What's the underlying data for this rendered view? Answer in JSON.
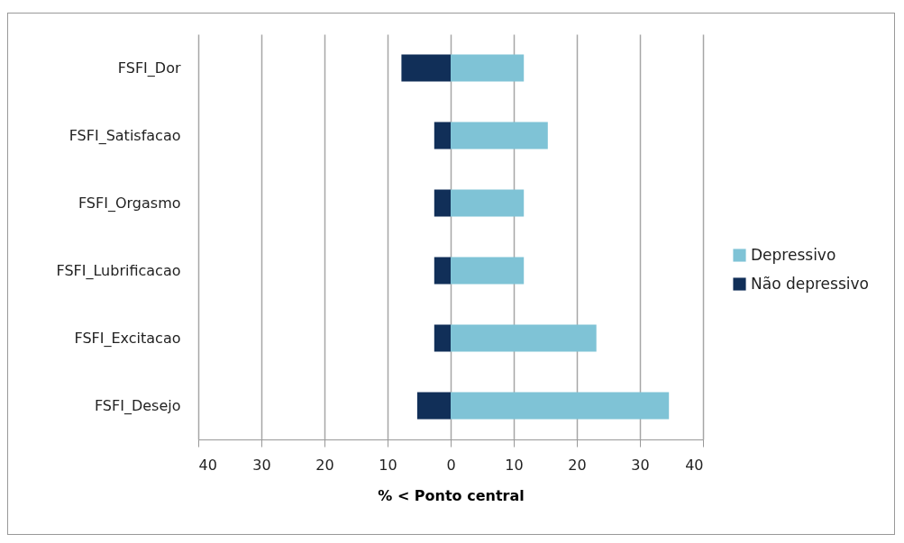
{
  "chart_data": {
    "type": "bar",
    "orientation": "horizontal",
    "stacked": true,
    "xlabel": "%  < Ponto central",
    "categories": [
      "FSFI_Dor",
      "FSFI_Satisfacao",
      "FSFI_Orgasmo",
      "FSFI_Lubrificacao",
      "FSFI_Excitacao",
      "FSFI_Desejo"
    ],
    "series": [
      {
        "name": "Depressivo",
        "color": "#7fc3d6",
        "values": [
          11.6,
          15.4,
          11.6,
          11.6,
          23.1,
          34.6
        ]
      },
      {
        "name": "Não depressivo",
        "color": "#112f58",
        "values": [
          -7.8,
          -2.6,
          -2.6,
          -2.6,
          -2.6,
          -5.3
        ]
      }
    ],
    "xlim": [
      -40,
      40
    ],
    "xticks": [
      {
        "value": -40,
        "label": "40"
      },
      {
        "value": -30,
        "label": "30"
      },
      {
        "value": -20,
        "label": "20"
      },
      {
        "value": -10,
        "label": "10"
      },
      0,
      10,
      20,
      30,
      40
    ],
    "grid": "x",
    "legend": "right"
  }
}
